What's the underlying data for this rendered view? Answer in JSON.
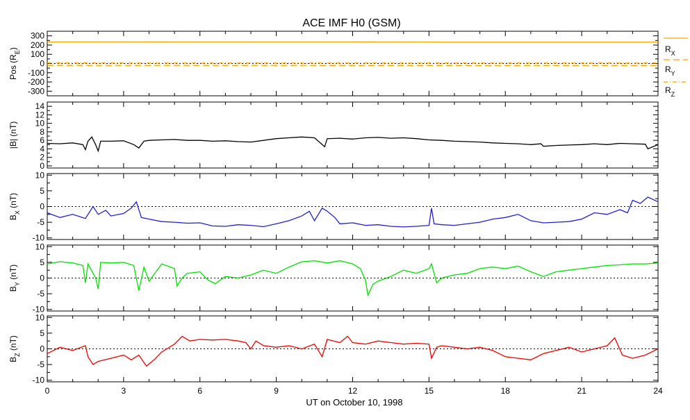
{
  "chart_data": {
    "type": "line",
    "title": "ACE IMF H0 (GSM)",
    "xlabel": "UT on October 10, 1998",
    "x_ticks": [
      "0",
      "3",
      "6",
      "9",
      "12",
      "15",
      "18",
      "21",
      "24"
    ],
    "xlim": [
      0,
      24
    ],
    "panels": [
      {
        "id": "pos",
        "ylabel": "Pos (R",
        "ylabel_sub": "E",
        "ylabel_suffix": ")",
        "ylim": [
          -350,
          350
        ],
        "y_ticks": [
          -300,
          -200,
          -100,
          0,
          100,
          200,
          300
        ],
        "y_tick_labels": [
          "-300",
          "-200",
          "-100",
          "0",
          "100",
          "200",
          "300"
        ],
        "zero_line": true,
        "series": [
          {
            "label": "R",
            "label_sub": "X",
            "style": "solid",
            "color": "#ffa500",
            "x": [
              0,
              24
            ],
            "y": [
              234,
              233
            ]
          },
          {
            "label": "R",
            "label_sub": "Y",
            "style": "dashed",
            "color": "#ffa500",
            "x": [
              0,
              24
            ],
            "y": [
              -20,
              -22
            ]
          },
          {
            "label": "R",
            "label_sub": "Z",
            "style": "dashdot",
            "color": "#ffa500",
            "x": [
              0,
              24
            ],
            "y": [
              6,
              5
            ]
          }
        ]
      },
      {
        "id": "bmag",
        "ylabel": "|B| (nT)",
        "ylim": [
          -0.5,
          15
        ],
        "y_ticks": [
          0,
          2,
          4,
          6,
          8,
          10,
          12,
          14
        ],
        "y_tick_labels": [
          "0",
          "2",
          "4",
          "6",
          "8",
          "10",
          "12",
          "14"
        ],
        "zero_line": false,
        "series": [
          {
            "color": "#000000",
            "x": [
              0,
              0.5,
              1.0,
              1.4,
              1.5,
              1.6,
              1.75,
              1.9,
              2.0,
              2.1,
              2.5,
              3.0,
              3.4,
              3.6,
              3.8,
              4.0,
              4.5,
              5.0,
              5.5,
              6.0,
              6.5,
              7.0,
              7.5,
              8.0,
              8.5,
              9.0,
              9.5,
              10.0,
              10.5,
              10.9,
              11.0,
              11.5,
              12.0,
              12.5,
              13.0,
              13.5,
              14.0,
              14.5,
              15.0,
              15.5,
              16.0,
              16.5,
              17.0,
              17.5,
              18.0,
              18.5,
              19.0,
              19.4,
              19.5,
              20.0,
              20.5,
              21.0,
              21.5,
              22.0,
              22.5,
              23.0,
              23.5,
              23.6,
              24.0
            ],
            "y": [
              5.3,
              5.2,
              5.4,
              5.0,
              3.8,
              5.8,
              6.8,
              5.0,
              3.5,
              5.8,
              5.8,
              5.9,
              5.0,
              4.2,
              5.8,
              6.0,
              6.1,
              6.2,
              6.0,
              6.0,
              5.8,
              5.9,
              5.7,
              5.6,
              6.0,
              6.4,
              6.6,
              6.8,
              6.6,
              4.5,
              6.4,
              6.5,
              6.3,
              6.6,
              6.7,
              6.5,
              6.6,
              6.4,
              6.1,
              6.0,
              5.8,
              5.7,
              5.6,
              5.4,
              5.3,
              5.2,
              5.0,
              5.2,
              4.6,
              4.8,
              4.9,
              5.0,
              5.2,
              5.0,
              5.3,
              5.2,
              5.1,
              4.0,
              5.0
            ]
          }
        ]
      },
      {
        "id": "bx",
        "ylabel": "B",
        "ylabel_sub": "X",
        "ylabel_suffix": " (nT)",
        "ylim": [
          -10.5,
          10.5
        ],
        "y_ticks": [
          -10,
          -5,
          0,
          5,
          10
        ],
        "y_tick_labels": [
          "-10",
          "-5",
          "0",
          "5",
          "10"
        ],
        "zero_line": true,
        "series": [
          {
            "color": "#2020d0",
            "x": [
              0,
              0.5,
              1.0,
              1.5,
              1.8,
              2.0,
              2.3,
              2.5,
              3.0,
              3.3,
              3.5,
              3.7,
              4.0,
              4.5,
              5.0,
              5.5,
              6.0,
              6.5,
              7.0,
              7.5,
              8.0,
              8.5,
              9.0,
              9.5,
              10.0,
              10.3,
              10.5,
              10.8,
              11.0,
              11.3,
              11.5,
              12.0,
              12.5,
              13.0,
              13.5,
              14.0,
              14.5,
              15.0,
              15.1,
              15.2,
              15.5,
              16.0,
              16.5,
              17.0,
              17.5,
              18.0,
              18.5,
              19.0,
              19.5,
              20.0,
              20.5,
              21.0,
              21.5,
              22.0,
              22.5,
              22.8,
              23.0,
              23.3,
              23.6,
              24.0
            ],
            "y": [
              -2.0,
              -3.5,
              -2.5,
              -3.8,
              0.0,
              -2.5,
              -1.2,
              -3.0,
              -2.2,
              -0.5,
              1.5,
              -3.5,
              -4.0,
              -4.8,
              -5.0,
              -5.3,
              -5.2,
              -6.2,
              -6.3,
              -5.8,
              -6.0,
              -6.4,
              -5.5,
              -4.5,
              -3.0,
              -1.5,
              -4.5,
              -0.5,
              -1.5,
              -3.5,
              -5.5,
              -5.2,
              -6.0,
              -5.8,
              -6.3,
              -6.5,
              -6.3,
              -6.0,
              -0.5,
              -5.5,
              -5.8,
              -6.0,
              -5.5,
              -5.0,
              -4.0,
              -3.5,
              -2.5,
              -4.5,
              -5.2,
              -5.0,
              -4.8,
              -4.0,
              -2.0,
              -2.5,
              -1.0,
              -2.0,
              2.0,
              1.0,
              3.0,
              1.5
            ]
          }
        ]
      },
      {
        "id": "by",
        "ylabel": "B",
        "ylabel_sub": "Y",
        "ylabel_suffix": " (nT)",
        "ylim": [
          -10.5,
          10.5
        ],
        "y_ticks": [
          -10,
          -5,
          0,
          5,
          10
        ],
        "y_tick_labels": [
          "-10",
          "-5",
          "0",
          "5",
          "10"
        ],
        "zero_line": true,
        "series": [
          {
            "color": "#00e000",
            "x": [
              0,
              0.5,
              1.0,
              1.4,
              1.5,
              1.6,
              1.9,
              2.0,
              2.1,
              2.5,
              3.0,
              3.4,
              3.6,
              3.8,
              4.0,
              4.5,
              5.0,
              5.1,
              5.3,
              5.5,
              6.0,
              6.3,
              6.6,
              7.0,
              7.5,
              8.0,
              8.5,
              9.0,
              9.5,
              10.0,
              10.5,
              11.0,
              11.5,
              12.0,
              12.3,
              12.5,
              12.6,
              12.8,
              13.0,
              13.5,
              14.0,
              14.5,
              15.0,
              15.1,
              15.3,
              15.5,
              16.0,
              16.5,
              17.0,
              17.5,
              18.0,
              18.5,
              19.0,
              19.5,
              20.0,
              20.5,
              21.0,
              21.5,
              22.0,
              22.5,
              23.0,
              23.5,
              24.0
            ],
            "y": [
              4.5,
              5.2,
              4.8,
              4.0,
              -1.5,
              4.5,
              0.0,
              -3.5,
              5.0,
              4.8,
              5.0,
              4.0,
              -4.0,
              3.5,
              -1.0,
              4.5,
              3.0,
              -2.5,
              0.0,
              1.5,
              2.0,
              -0.5,
              -1.8,
              0.5,
              0.0,
              1.0,
              2.5,
              1.5,
              3.5,
              5.2,
              5.5,
              4.8,
              5.5,
              4.5,
              3.0,
              -0.5,
              -5.5,
              -2.0,
              -1.0,
              0.5,
              2.5,
              1.5,
              3.0,
              4.5,
              -1.5,
              0.0,
              1.0,
              1.5,
              3.0,
              3.5,
              3.0,
              3.8,
              2.0,
              0.5,
              2.0,
              2.5,
              3.0,
              3.5,
              4.0,
              4.2,
              4.5,
              4.5,
              4.8
            ]
          }
        ]
      },
      {
        "id": "bz",
        "ylabel": "B",
        "ylabel_sub": "Z",
        "ylabel_suffix": " (nT)",
        "ylim": [
          -10.5,
          10.5
        ],
        "y_ticks": [
          -10,
          -5,
          0,
          5,
          10
        ],
        "y_tick_labels": [
          "-10",
          "-5",
          "0",
          "5",
          "10"
        ],
        "zero_line": true,
        "series": [
          {
            "color": "#ee0000",
            "x": [
              0,
              0.5,
              1.0,
              1.5,
              1.6,
              1.8,
              2.0,
              2.5,
              3.0,
              3.3,
              3.6,
              3.9,
              4.2,
              4.5,
              5.0,
              5.3,
              5.6,
              6.0,
              6.5,
              7.0,
              7.5,
              7.8,
              8.0,
              8.2,
              8.5,
              9.0,
              9.5,
              10.0,
              10.5,
              10.8,
              11.0,
              11.5,
              11.8,
              12.0,
              12.5,
              13.0,
              13.5,
              14.0,
              14.5,
              15.0,
              15.1,
              15.3,
              15.5,
              16.0,
              16.5,
              17.0,
              17.5,
              18.0,
              18.5,
              19.0,
              19.5,
              20.0,
              20.5,
              21.0,
              21.5,
              22.0,
              22.3,
              22.6,
              23.0,
              23.5,
              24.0
            ],
            "y": [
              -1.5,
              0.5,
              -0.5,
              1.0,
              -2.5,
              -5.0,
              -4.0,
              -3.0,
              -2.0,
              -3.5,
              -2.0,
              -5.5,
              -3.5,
              -1.0,
              1.5,
              4.0,
              2.5,
              3.0,
              2.8,
              3.0,
              2.5,
              2.0,
              0.0,
              2.5,
              1.0,
              0.5,
              1.0,
              0.0,
              1.5,
              -2.5,
              3.0,
              2.0,
              4.0,
              2.0,
              1.5,
              2.5,
              2.0,
              1.5,
              1.8,
              1.5,
              -3.0,
              0.5,
              1.0,
              0.5,
              0.0,
              0.5,
              -0.5,
              -2.5,
              -3.0,
              -3.5,
              -1.5,
              -0.5,
              0.5,
              -1.0,
              0.0,
              1.0,
              3.5,
              -2.0,
              -3.0,
              -2.0,
              0.0
            ]
          }
        ]
      }
    ]
  }
}
